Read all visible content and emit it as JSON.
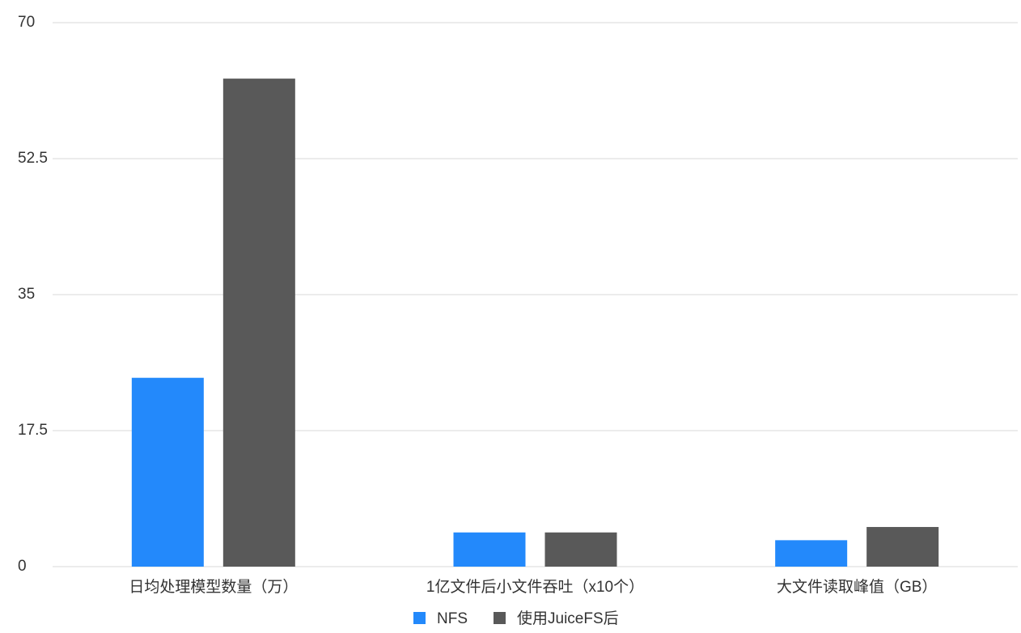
{
  "chart_data": {
    "type": "bar",
    "categories": [
      "日均处理模型数量（万）",
      "1亿文件后小文件吞吐（x10个）",
      "大文件读取峰值（GB）"
    ],
    "series": [
      {
        "name": "NFS",
        "color": "#2389fb",
        "values": [
          24.3,
          4.4,
          3.4
        ]
      },
      {
        "name": "使用JuiceFS后",
        "color": "#595959",
        "values": [
          62.8,
          4.4,
          5.1
        ]
      }
    ],
    "ylim": [
      0,
      70
    ],
    "yticks": [
      0,
      17.5,
      35,
      52.5,
      70
    ],
    "grid": true,
    "legend": "bottom"
  }
}
